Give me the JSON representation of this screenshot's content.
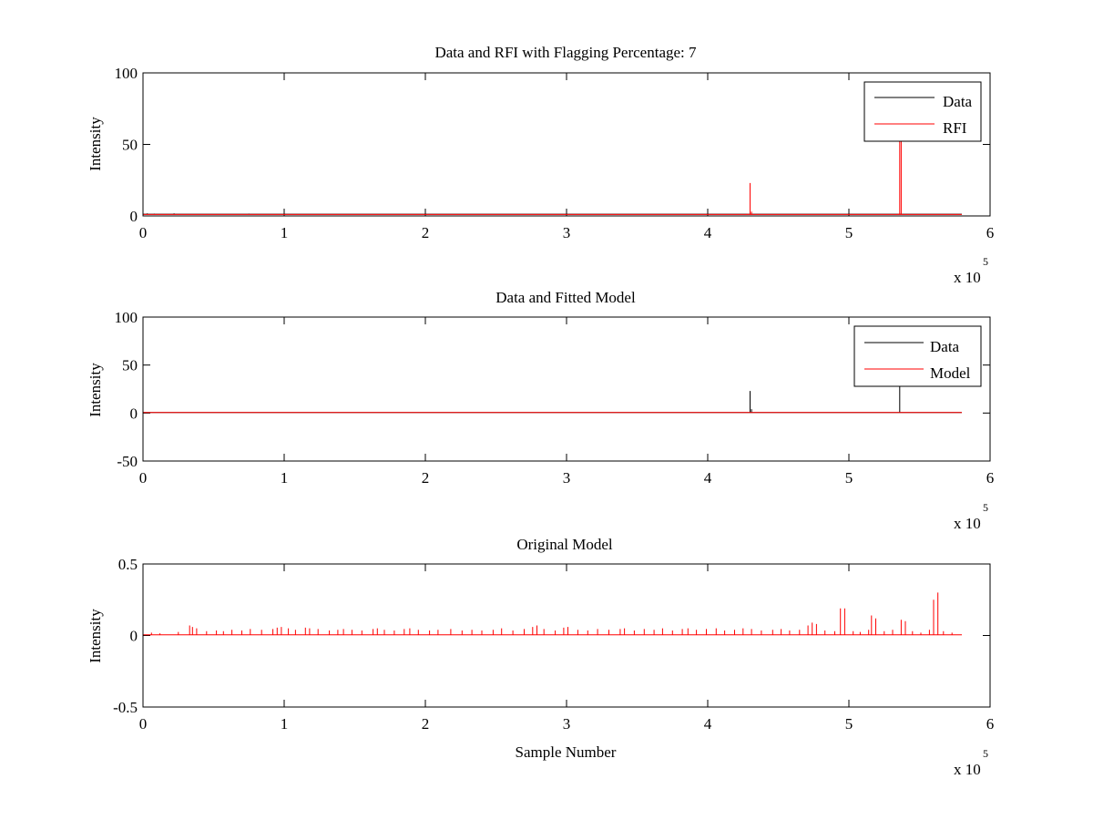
{
  "figure": {
    "background": "#ffffff"
  },
  "colors": {
    "data": "#000000",
    "red": "#ff0000",
    "axes": "#000000"
  },
  "chart_data": [
    {
      "type": "line",
      "title": "Data and RFI with Flagging Percentage: 7",
      "xlabel": "",
      "ylabel": "Intensity",
      "xlim": [
        0,
        600000
      ],
      "ylim": [
        0,
        100
      ],
      "xticks": [
        0,
        1,
        2,
        3,
        4,
        5,
        6
      ],
      "yticks": [
        0,
        50,
        100
      ],
      "x_exponent": "x 10",
      "x_exponent_power": "5",
      "grid": false,
      "legend": "top-right",
      "series": [
        {
          "name": "Data",
          "color": "#000000",
          "baseline": 1.2,
          "x_end": 580000,
          "spikes": [
            [
              3000,
              1.8
            ],
            [
              8000,
              1.6
            ],
            [
              22000,
              1.7
            ],
            [
              40000,
              1.5
            ],
            [
              75000,
              1.6
            ],
            [
              570000,
              1.5
            ]
          ]
        },
        {
          "name": "RFI",
          "color": "#ff0000",
          "baseline": 1.0,
          "x_end": 580000,
          "spikes": [
            [
              428000,
              1.5
            ],
            [
              430000,
              23
            ],
            [
              431000,
              3
            ],
            [
              535000,
              1.5
            ],
            [
              536000,
              54
            ],
            [
              537000,
              54
            ]
          ]
        }
      ]
    },
    {
      "type": "line",
      "title": "Data and Fitted Model",
      "xlabel": "",
      "ylabel": "Intensity",
      "xlim": [
        0,
        600000
      ],
      "ylim": [
        -50,
        100
      ],
      "xticks": [
        0,
        1,
        2,
        3,
        4,
        5,
        6
      ],
      "yticks": [
        -50,
        0,
        50,
        100
      ],
      "x_exponent": "x 10",
      "x_exponent_power": "5",
      "grid": false,
      "legend": "top-right",
      "series": [
        {
          "name": "Data",
          "color": "#000000",
          "baseline": 0.6,
          "x_end": 580000,
          "spikes": [
            [
              430000,
              23
            ],
            [
              431000,
              4
            ],
            [
              536000,
              28
            ]
          ]
        },
        {
          "name": "Model",
          "color": "#ff0000",
          "baseline": 0.6,
          "x_end": 580000,
          "spikes": []
        }
      ]
    },
    {
      "type": "line",
      "title": "Original Model",
      "xlabel": "Sample Number",
      "ylabel": "Intensity",
      "xlim": [
        0,
        600000
      ],
      "ylim": [
        -0.5,
        0.5
      ],
      "xticks": [
        0,
        1,
        2,
        3,
        4,
        5,
        6
      ],
      "yticks": [
        -0.5,
        0,
        0.5
      ],
      "x_exponent": "x 10",
      "x_exponent_power": "5",
      "grid": false,
      "legend": "none",
      "series": [
        {
          "color": "#ff0000",
          "baseline": 0.005,
          "x_end": 580000,
          "spikes": [
            [
              6000,
              0.02
            ],
            [
              12000,
              0.015
            ],
            [
              25000,
              0.025
            ],
            [
              33000,
              0.07
            ],
            [
              35000,
              0.06
            ],
            [
              38000,
              0.05
            ],
            [
              45000,
              0.03
            ],
            [
              52000,
              0.035
            ],
            [
              57000,
              0.03
            ],
            [
              63000,
              0.04
            ],
            [
              70000,
              0.035
            ],
            [
              76000,
              0.045
            ],
            [
              84000,
              0.04
            ],
            [
              92000,
              0.045
            ],
            [
              95000,
              0.055
            ],
            [
              98000,
              0.06
            ],
            [
              103000,
              0.05
            ],
            [
              108000,
              0.04
            ],
            [
              115000,
              0.055
            ],
            [
              118000,
              0.05
            ],
            [
              124000,
              0.045
            ],
            [
              132000,
              0.035
            ],
            [
              138000,
              0.04
            ],
            [
              142000,
              0.045
            ],
            [
              148000,
              0.04
            ],
            [
              155000,
              0.035
            ],
            [
              163000,
              0.045
            ],
            [
              166000,
              0.05
            ],
            [
              171000,
              0.04
            ],
            [
              178000,
              0.035
            ],
            [
              185000,
              0.045
            ],
            [
              189000,
              0.05
            ],
            [
              195000,
              0.04
            ],
            [
              203000,
              0.035
            ],
            [
              209000,
              0.04
            ],
            [
              218000,
              0.045
            ],
            [
              226000,
              0.035
            ],
            [
              233000,
              0.04
            ],
            [
              240000,
              0.035
            ],
            [
              248000,
              0.04
            ],
            [
              254000,
              0.05
            ],
            [
              262000,
              0.035
            ],
            [
              270000,
              0.045
            ],
            [
              276000,
              0.06
            ],
            [
              279000,
              0.07
            ],
            [
              284000,
              0.045
            ],
            [
              292000,
              0.035
            ],
            [
              298000,
              0.055
            ],
            [
              301000,
              0.06
            ],
            [
              308000,
              0.04
            ],
            [
              315000,
              0.035
            ],
            [
              322000,
              0.045
            ],
            [
              330000,
              0.04
            ],
            [
              338000,
              0.045
            ],
            [
              341000,
              0.05
            ],
            [
              348000,
              0.035
            ],
            [
              355000,
              0.045
            ],
            [
              362000,
              0.04
            ],
            [
              368000,
              0.05
            ],
            [
              375000,
              0.035
            ],
            [
              382000,
              0.045
            ],
            [
              386000,
              0.05
            ],
            [
              392000,
              0.04
            ],
            [
              399000,
              0.045
            ],
            [
              406000,
              0.05
            ],
            [
              412000,
              0.035
            ],
            [
              419000,
              0.04
            ],
            [
              425000,
              0.05
            ],
            [
              431000,
              0.045
            ],
            [
              438000,
              0.035
            ],
            [
              446000,
              0.04
            ],
            [
              452000,
              0.045
            ],
            [
              458000,
              0.035
            ],
            [
              465000,
              0.04
            ],
            [
              471000,
              0.07
            ],
            [
              474000,
              0.09
            ],
            [
              477000,
              0.08
            ],
            [
              483000,
              0.035
            ],
            [
              490000,
              0.03
            ],
            [
              494000,
              0.19
            ],
            [
              497000,
              0.19
            ],
            [
              503000,
              0.03
            ],
            [
              508000,
              0.025
            ],
            [
              514000,
              0.04
            ],
            [
              516000,
              0.14
            ],
            [
              519000,
              0.12
            ],
            [
              525000,
              0.03
            ],
            [
              531000,
              0.04
            ],
            [
              537000,
              0.11
            ],
            [
              540000,
              0.1
            ],
            [
              545000,
              0.03
            ],
            [
              551000,
              0.02
            ],
            [
              557000,
              0.04
            ],
            [
              560000,
              0.25
            ],
            [
              563000,
              0.3
            ],
            [
              567000,
              0.03
            ],
            [
              573000,
              0.02
            ]
          ]
        }
      ]
    }
  ]
}
